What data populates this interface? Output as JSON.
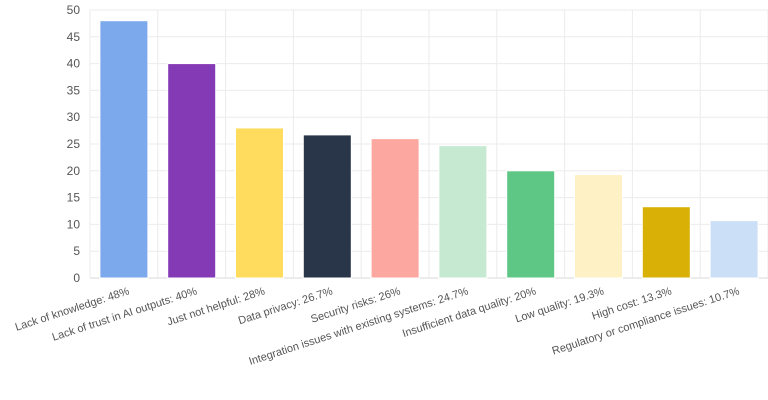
{
  "chart_data": {
    "type": "bar",
    "title": "",
    "xlabel": "",
    "ylabel": "",
    "ylim": [
      0,
      50
    ],
    "yticks": [
      0,
      5,
      10,
      15,
      20,
      25,
      30,
      35,
      40,
      45,
      50
    ],
    "grid": true,
    "legend": "none",
    "categories": [
      "Lack of knowledge: 48%",
      "Lack of trust in AI outputs: 40%",
      "Just not helpful: 28%",
      "Data privacy: 26.7%",
      "Security risks: 26%",
      "Integration issues with existing systems: 24.7%",
      "Insufficient data quality: 20%",
      "Low quality: 19.3%",
      "High cost: 13.3%",
      "Regulatory or compliance issues: 10.7%"
    ],
    "values": [
      48,
      40,
      28,
      26.7,
      26,
      24.7,
      20,
      19.3,
      13.3,
      10.7
    ],
    "colors": [
      "#7ba9ec",
      "#8439b5",
      "#ffdc5e",
      "#293548",
      "#fca79f",
      "#c5ead1",
      "#5fc785",
      "#fff1c6",
      "#d9b006",
      "#cbdff7"
    ]
  }
}
